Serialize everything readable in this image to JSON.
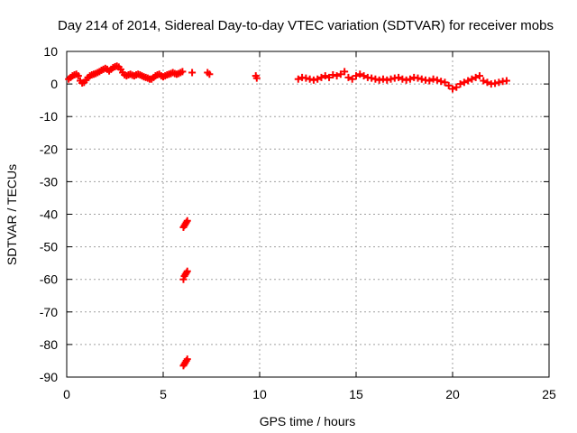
{
  "chart_data": {
    "type": "scatter",
    "title": "Day 214 of 2014, Sidereal Day-to-day VTEC variation (SDTVAR) for receiver mobs",
    "xlabel": "GPS time / hours",
    "ylabel": "SDTVAR / TECUs",
    "xlim": [
      0,
      25
    ],
    "ylim": [
      -90,
      10
    ],
    "xticks": [
      0,
      5,
      10,
      15,
      20,
      25
    ],
    "xtick_labels": [
      "0",
      "5",
      "10",
      "15",
      "20",
      "25"
    ],
    "yticks": [
      10,
      0,
      -10,
      -20,
      -30,
      -40,
      -50,
      -60,
      -70,
      -80,
      -90
    ],
    "ytick_labels": [
      "10",
      "0",
      "-10",
      "-20",
      "-30",
      "-40",
      "-50",
      "-60",
      "-70",
      "-80",
      "-90"
    ],
    "grid": true,
    "marker": "+",
    "series": [
      {
        "name": "SDTVAR",
        "color": "#ff0000",
        "x": [
          0.1,
          0.2,
          0.3,
          0.4,
          0.5,
          0.6,
          0.7,
          0.8,
          0.9,
          1.0,
          1.1,
          1.2,
          1.3,
          1.4,
          1.5,
          1.6,
          1.7,
          1.8,
          1.9,
          2.0,
          2.1,
          2.2,
          2.3,
          2.4,
          2.5,
          2.6,
          2.7,
          2.8,
          2.9,
          3.0,
          3.1,
          3.2,
          3.3,
          3.4,
          3.5,
          3.6,
          3.7,
          3.8,
          3.9,
          4.0,
          4.1,
          4.2,
          4.3,
          4.4,
          4.5,
          4.6,
          4.7,
          4.8,
          4.9,
          5.0,
          5.1,
          5.2,
          5.3,
          5.4,
          5.5,
          5.6,
          5.7,
          5.8,
          5.9,
          6.0,
          6.5,
          7.3,
          7.4,
          9.8,
          9.85,
          12.0,
          12.2,
          12.4,
          12.6,
          12.8,
          13.0,
          13.2,
          13.4,
          13.6,
          13.8,
          14.0,
          14.2,
          14.4,
          14.6,
          14.8,
          15.0,
          15.2,
          15.4,
          15.6,
          15.8,
          16.0,
          16.2,
          16.4,
          16.6,
          16.8,
          17.0,
          17.2,
          17.4,
          17.6,
          17.8,
          18.0,
          18.2,
          18.4,
          18.6,
          18.8,
          19.0,
          19.2,
          19.4,
          19.6,
          19.8,
          20.0,
          20.2,
          20.4,
          20.6,
          20.8,
          21.0,
          21.2,
          21.4,
          21.6,
          21.8,
          22.0,
          22.2,
          22.4,
          22.6,
          22.8,
          6.05,
          6.1,
          6.15,
          6.2,
          6.25,
          6.05,
          6.1,
          6.15,
          6.2,
          6.25,
          6.05,
          6.1,
          6.15,
          6.2,
          6.25
        ],
        "y": [
          1.5,
          2.0,
          2.5,
          2.8,
          3.0,
          2.5,
          1.0,
          0.3,
          0.5,
          1.2,
          2.0,
          2.5,
          2.8,
          3.0,
          3.2,
          3.5,
          3.8,
          4.2,
          4.5,
          4.8,
          4.5,
          4.0,
          4.5,
          5.0,
          5.3,
          5.5,
          5.2,
          4.5,
          3.5,
          2.8,
          2.5,
          2.8,
          3.0,
          2.7,
          2.5,
          2.8,
          3.0,
          2.8,
          2.5,
          2.2,
          2.0,
          1.8,
          1.5,
          1.5,
          2.0,
          2.5,
          2.8,
          3.0,
          2.5,
          2.2,
          2.5,
          2.8,
          3.0,
          3.2,
          3.5,
          3.2,
          3.0,
          3.2,
          3.5,
          3.8,
          3.5,
          3.5,
          3.0,
          2.5,
          1.8,
          1.5,
          2.0,
          1.8,
          1.5,
          1.2,
          1.5,
          2.0,
          2.5,
          2.0,
          2.8,
          2.5,
          3.0,
          3.8,
          2.0,
          1.5,
          2.5,
          3.0,
          2.5,
          2.0,
          1.8,
          1.5,
          1.2,
          1.5,
          1.2,
          1.5,
          1.8,
          2.0,
          1.5,
          1.2,
          1.5,
          2.0,
          1.8,
          1.5,
          1.2,
          1.0,
          1.5,
          1.2,
          0.8,
          0.5,
          -0.5,
          -1.5,
          -1.0,
          0.0,
          0.5,
          1.0,
          1.5,
          2.0,
          2.5,
          1.0,
          0.5,
          0.0,
          0.2,
          0.5,
          0.8,
          1.0,
          -44.0,
          -43.5,
          -43.0,
          -42.5,
          -42.0,
          -60.0,
          -59.0,
          -58.5,
          -58.0,
          -57.5,
          -86.5,
          -86.0,
          -85.5,
          -85.0,
          -84.5
        ]
      }
    ]
  }
}
